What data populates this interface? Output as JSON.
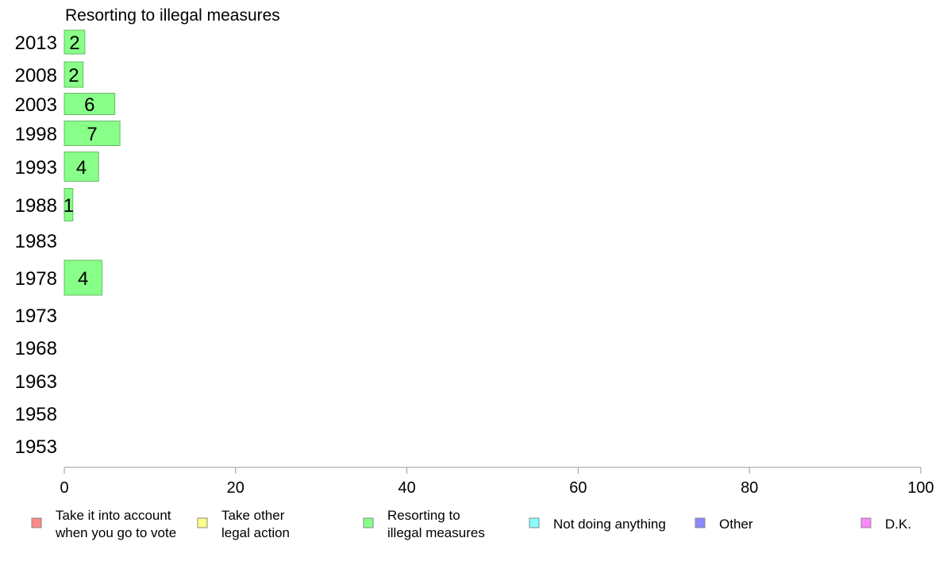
{
  "chart_data": {
    "type": "bar",
    "orientation": "horizontal",
    "title": "Resorting to illegal measures",
    "categories": [
      "2013",
      "2008",
      "2003",
      "1998",
      "1993",
      "1988",
      "1983",
      "1978",
      "1973",
      "1968",
      "1963",
      "1958",
      "1953"
    ],
    "values": [
      2.4,
      2.2,
      5.9,
      6.5,
      4.0,
      1.0,
      null,
      4.4,
      null,
      null,
      null,
      null,
      null
    ],
    "data_labels": [
      "2",
      "2",
      "6",
      "7",
      "4",
      "1",
      "",
      "4",
      "",
      "",
      "",
      "",
      ""
    ],
    "xlim": [
      0,
      100
    ],
    "xticks": [
      0,
      20,
      40,
      60,
      80,
      100
    ],
    "grid": false,
    "bar_color": "#88ff88",
    "bar_edge_color": "#66bb66",
    "axis_color": "#999999"
  },
  "legend": {
    "placement": "bottom",
    "items": [
      {
        "lines": [
          "Take it into account",
          "when you go to vote"
        ],
        "color": "#ff8888"
      },
      {
        "lines": [
          "Take other",
          "legal action"
        ],
        "color": "#ffff88"
      },
      {
        "lines": [
          "Resorting to",
          "illegal measures"
        ],
        "color": "#88ff88"
      },
      {
        "lines": [
          "Not doing anything"
        ],
        "color": "#88ffff"
      },
      {
        "lines": [
          "Other"
        ],
        "color": "#8888ff"
      },
      {
        "lines": [
          "D.K."
        ],
        "color": "#ff88ff"
      }
    ]
  }
}
